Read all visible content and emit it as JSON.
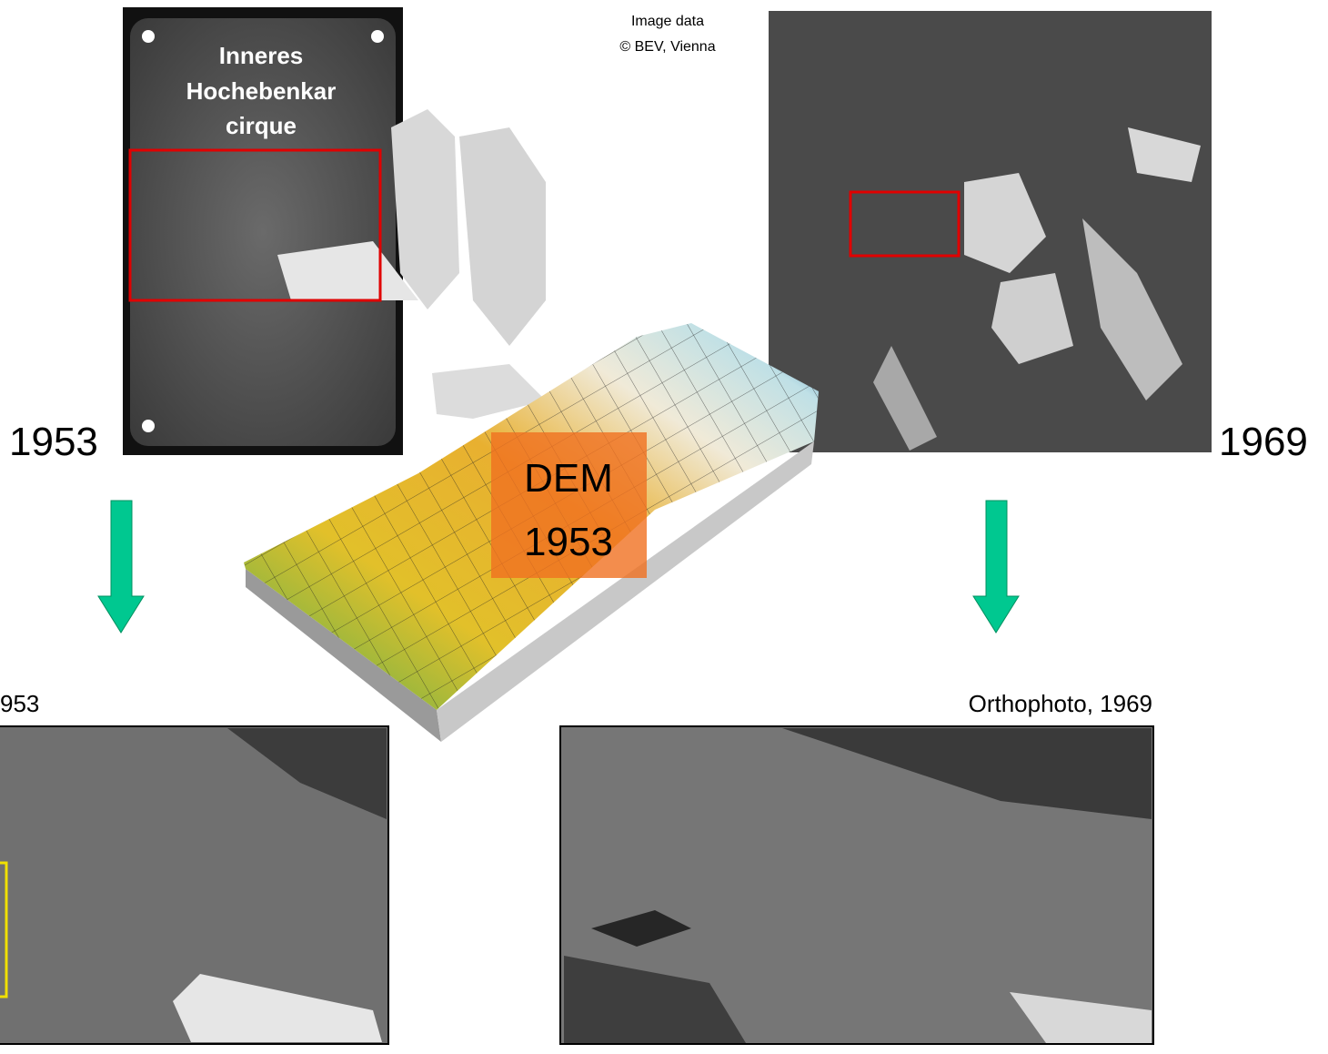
{
  "labels": {
    "cirque": [
      "Inneres",
      "Hochebenkar",
      "cirque"
    ],
    "credit": [
      "Image data",
      "© BEV, Vienna"
    ],
    "year_left": "1953",
    "year_right": "1969",
    "dem": [
      "DEM",
      "1953"
    ],
    "ortho_left": "953",
    "ortho_right": "Orthophoto, 1969"
  }
}
